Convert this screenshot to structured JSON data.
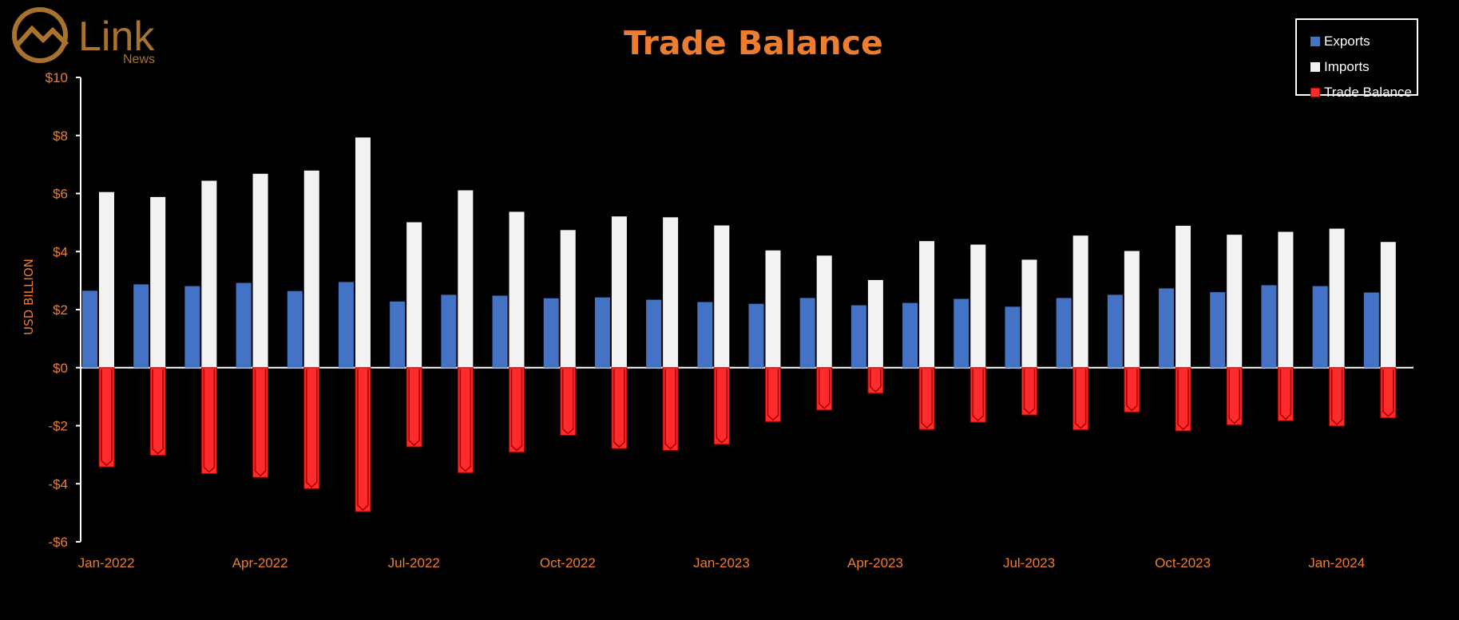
{
  "brand": {
    "name": "Link",
    "sub": "News"
  },
  "colors": {
    "exports": "#4472c4",
    "imports": "#f2f2f2",
    "balance": "#ff2a2a",
    "accent": "#ed7d31",
    "logo": "#a8742d"
  },
  "chart_data": {
    "type": "bar",
    "title": "Trade Balance",
    "ylabel": "USD BILLION",
    "xlabel": "",
    "ylim": [
      -6,
      10
    ],
    "yticks": [
      -6,
      -4,
      -2,
      0,
      2,
      4,
      6,
      8,
      10
    ],
    "ytick_labels": [
      "-$6",
      "-$4",
      "-$2",
      "$0",
      "$2",
      "$4",
      "$6",
      "$8",
      "$10"
    ],
    "categories": [
      "Jan-2022",
      "Feb-2022",
      "Mar-2022",
      "Apr-2022",
      "May-2022",
      "Jun-2022",
      "Jul-2022",
      "Aug-2022",
      "Sep-2022",
      "Oct-2022",
      "Nov-2022",
      "Dec-2022",
      "Jan-2023",
      "Feb-2023",
      "Mar-2023",
      "Apr-2023",
      "May-2023",
      "Jun-2023",
      "Jul-2023",
      "Aug-2023",
      "Sep-2023",
      "Oct-2023",
      "Nov-2023",
      "Dec-2023",
      "Jan-2024",
      "Feb-2024"
    ],
    "tick_labels": [
      {
        "index": 0,
        "label": "Jan-2022"
      },
      {
        "index": 3,
        "label": "Apr-2022"
      },
      {
        "index": 6,
        "label": "Jul-2022"
      },
      {
        "index": 9,
        "label": "Oct-2022"
      },
      {
        "index": 12,
        "label": "Jan-2023"
      },
      {
        "index": 15,
        "label": "Apr-2023"
      },
      {
        "index": 18,
        "label": "Jul-2023"
      },
      {
        "index": 21,
        "label": "Oct-2023"
      },
      {
        "index": 24,
        "label": "Jan-2024"
      }
    ],
    "series": [
      {
        "name": "Exports",
        "values": [
          2.65,
          2.87,
          2.81,
          2.92,
          2.64,
          2.95,
          2.28,
          2.51,
          2.48,
          2.39,
          2.42,
          2.34,
          2.26,
          2.2,
          2.4,
          2.15,
          2.23,
          2.37,
          2.1,
          2.4,
          2.51,
          2.73,
          2.6,
          2.84,
          2.81,
          2.59
        ]
      },
      {
        "name": "Imports",
        "values": [
          6.05,
          5.88,
          6.44,
          6.68,
          6.79,
          7.93,
          5.01,
          6.11,
          5.37,
          4.74,
          5.21,
          5.18,
          4.9,
          4.04,
          3.86,
          3.02,
          4.36,
          4.24,
          3.72,
          4.55,
          4.02,
          4.89,
          4.58,
          4.68,
          4.79,
          4.33
        ]
      },
      {
        "name": "Trade Balance",
        "values": [
          -3.42,
          -3.02,
          -3.65,
          -3.78,
          -4.17,
          -4.96,
          -2.73,
          -3.62,
          -2.91,
          -2.33,
          -2.79,
          -2.85,
          -2.64,
          -1.86,
          -1.46,
          -0.88,
          -2.13,
          -1.88,
          -1.63,
          -2.14,
          -1.53,
          -2.18,
          -1.97,
          -1.83,
          -2.01,
          -1.73
        ]
      }
    ],
    "legend": "top-right",
    "grid": false
  }
}
